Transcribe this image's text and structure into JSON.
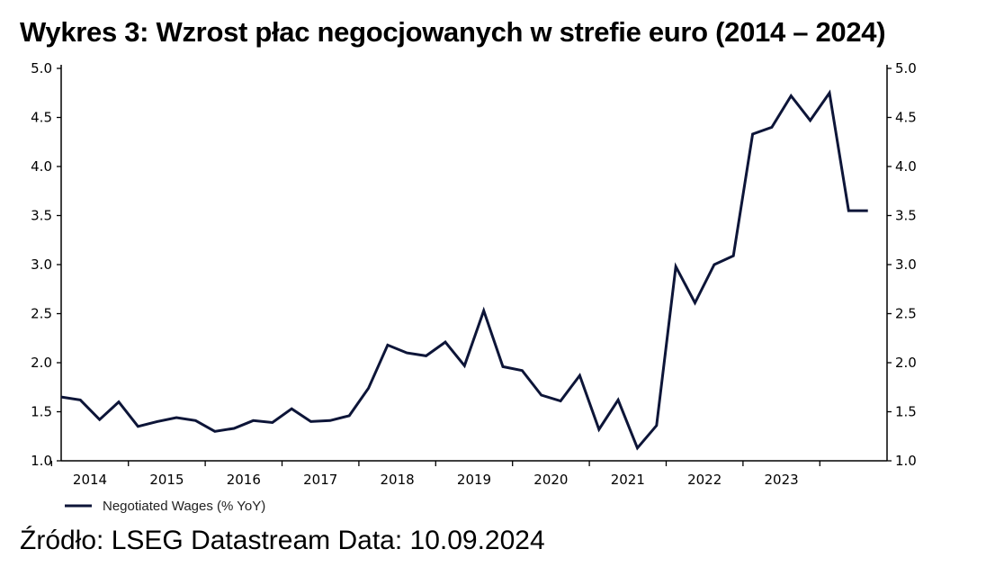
{
  "title": "Wykres 3: Wzrost płac negocjowanych w strefie euro (2014 – 2024)",
  "source": "Źródło: LSEG Datastream Data: 10.09.2024",
  "colors": {
    "series": "#0d1538",
    "axis": "#000000"
  },
  "chart_data": {
    "type": "line",
    "title": "",
    "xlabel": "",
    "ylabel": "",
    "ylim": [
      1.0,
      5.0
    ],
    "yticks": [
      "1.0",
      "1.5",
      "2.0",
      "2.5",
      "3.0",
      "3.5",
      "4.0",
      "4.5",
      "5.0"
    ],
    "y_axes": "left and right (identical scale)",
    "x_tick_labels": [
      "2014",
      "2015",
      "2016",
      "2017",
      "2018",
      "2019",
      "2020",
      "2021",
      "2022",
      "2023"
    ],
    "xlim": [
      2013.625,
      2024.375
    ],
    "grid": false,
    "legend_position": "bottom-left",
    "series": [
      {
        "name": "Negotiated Wages (% YoY)",
        "x": [
          "2014 Q1",
          "2014 Q2",
          "2014 Q3",
          "2014 Q4",
          "2015 Q1",
          "2015 Q2",
          "2015 Q3",
          "2015 Q4",
          "2016 Q1",
          "2016 Q2",
          "2016 Q3",
          "2016 Q4",
          "2017 Q1",
          "2017 Q2",
          "2017 Q3",
          "2017 Q4",
          "2018 Q1",
          "2018 Q2",
          "2018 Q3",
          "2018 Q4",
          "2019 Q1",
          "2019 Q2",
          "2019 Q3",
          "2019 Q4",
          "2020 Q1",
          "2020 Q2",
          "2020 Q3",
          "2020 Q4",
          "2021 Q1",
          "2021 Q2",
          "2021 Q3",
          "2021 Q4",
          "2022 Q1",
          "2022 Q2",
          "2022 Q3",
          "2022 Q4",
          "2023 Q1",
          "2023 Q2",
          "2023 Q3",
          "2023 Q4",
          "2024 Q1",
          "2024 Q2",
          "2024 Q3"
        ],
        "values": [
          1.65,
          1.62,
          1.42,
          1.6,
          1.35,
          1.4,
          1.44,
          1.41,
          1.3,
          1.33,
          1.41,
          1.39,
          1.53,
          1.4,
          1.41,
          1.46,
          1.74,
          2.18,
          2.1,
          2.07,
          2.21,
          1.97,
          2.53,
          1.96,
          1.92,
          1.67,
          1.61,
          1.87,
          1.32,
          1.62,
          1.13,
          1.36,
          2.98,
          2.61,
          3.0,
          3.09,
          4.33,
          4.4,
          4.72,
          4.47,
          4.75,
          3.55,
          3.55
        ]
      }
    ]
  }
}
